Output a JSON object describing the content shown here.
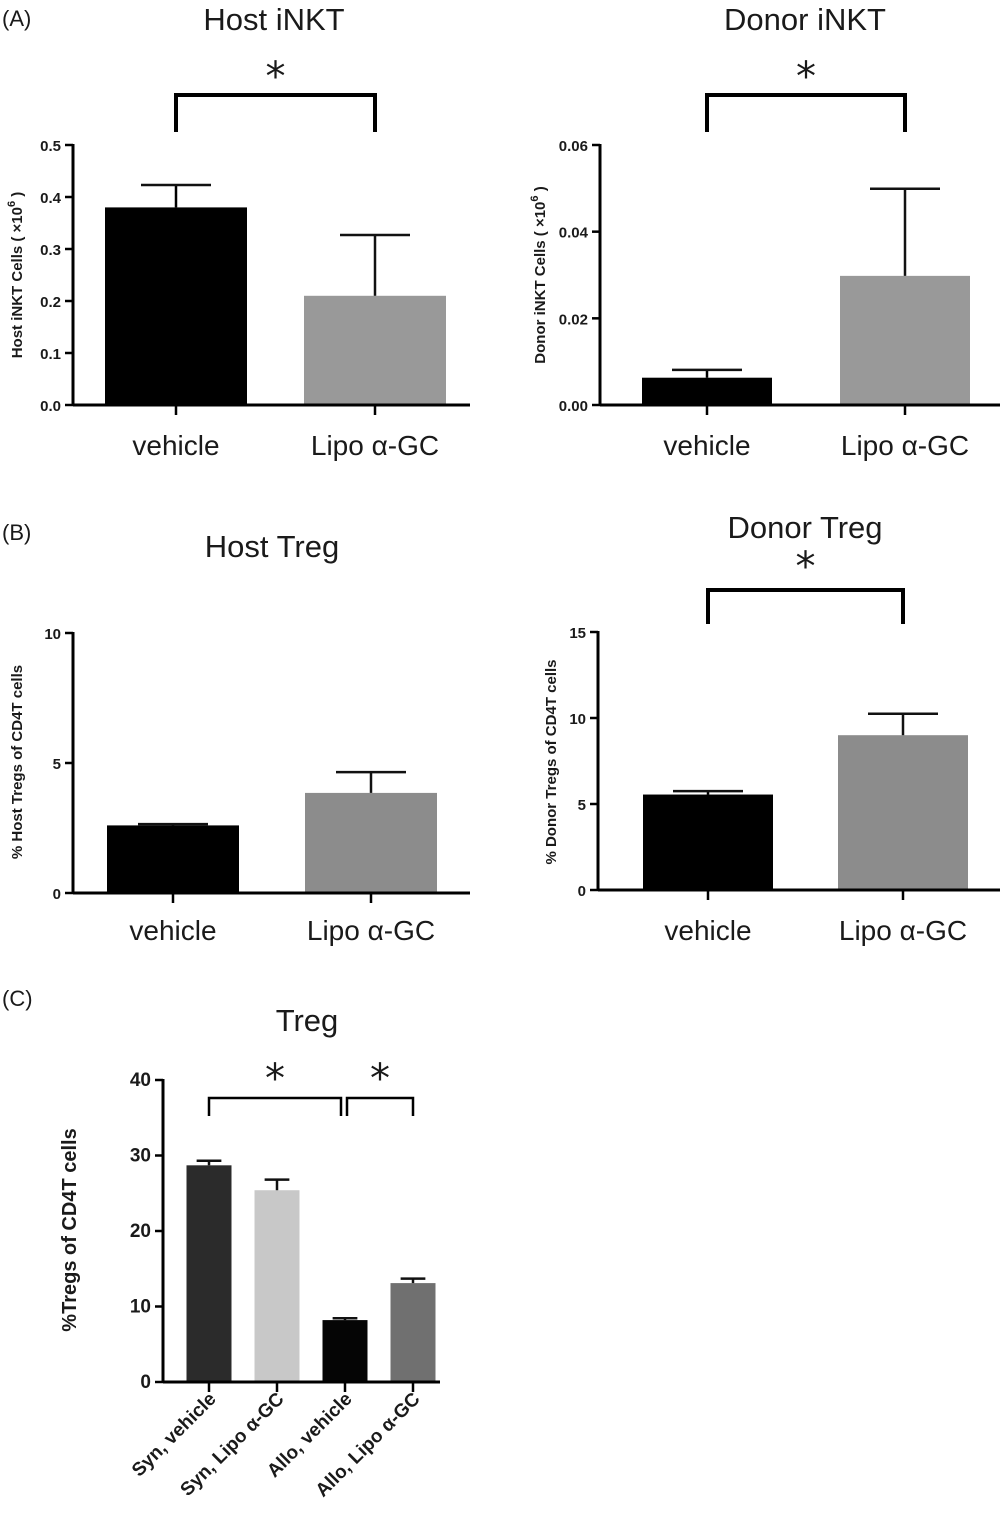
{
  "panels": {
    "A": "(A)",
    "B": "(B)",
    "C": "(C)"
  },
  "chart_data": [
    {
      "id": "hostINKT",
      "type": "bar",
      "panel": "A",
      "title": "Host iNKT",
      "ylabel_main": "Host iNKT Cells (",
      "ylabel_x": "×10",
      "ylabel_exp": "6",
      "ylabel_end": ")",
      "categories": [
        "vehicle",
        "Lipo α-GC"
      ],
      "values": [
        0.38,
        0.21
      ],
      "errors": [
        0.043,
        0.117
      ],
      "colors": [
        "#000000",
        "#999999"
      ],
      "ylim": [
        0,
        0.5
      ],
      "ticks": [
        0.0,
        0.1,
        0.2,
        0.3,
        0.4,
        0.5
      ],
      "tick_labels": [
        "0.0",
        "0.1",
        "0.2",
        "0.3",
        "0.4",
        "0.5"
      ],
      "significance": [
        {
          "from": 0,
          "to": 1,
          "label": "*"
        }
      ]
    },
    {
      "id": "donorINKT",
      "type": "bar",
      "panel": "A",
      "title": "Donor iNKT",
      "ylabel_main": "Donor iNKT Cells (",
      "ylabel_x": "×10",
      "ylabel_exp": "6",
      "ylabel_end": ")",
      "categories": [
        "vehicle",
        "Lipo α-GC"
      ],
      "values": [
        0.0063,
        0.0298
      ],
      "errors": [
        0.0018,
        0.0201
      ],
      "colors": [
        "#000000",
        "#999999"
      ],
      "ylim": [
        0,
        0.06
      ],
      "ticks": [
        0,
        0.02,
        0.04,
        0.06
      ],
      "tick_labels": [
        "0.00",
        "0.02",
        "0.04",
        "0.06"
      ],
      "significance": [
        {
          "from": 0,
          "to": 1,
          "label": "*"
        }
      ]
    },
    {
      "id": "hostTreg",
      "type": "bar",
      "panel": "B",
      "title": "Host Treg",
      "ylabel": "% Host Tregs of CD4T cells",
      "categories": [
        "vehicle",
        "Lipo α-GC"
      ],
      "values": [
        2.6,
        3.85
      ],
      "errors": [
        0.05,
        0.8
      ],
      "colors": [
        "#000000",
        "#8c8c8c"
      ],
      "ylim": [
        0,
        10
      ],
      "ticks": [
        0,
        5,
        10
      ],
      "tick_labels": [
        "0",
        "5",
        "10"
      ],
      "significance": []
    },
    {
      "id": "donorTreg",
      "type": "bar",
      "panel": "B",
      "title": "Donor Treg",
      "ylabel": "% Donor Tregs of CD4T cells",
      "categories": [
        "vehicle",
        "Lipo α-GC"
      ],
      "values": [
        5.55,
        9.0
      ],
      "errors": [
        0.2,
        1.25
      ],
      "colors": [
        "#000000",
        "#8c8c8c"
      ],
      "ylim": [
        0,
        15
      ],
      "ticks": [
        0,
        5,
        10,
        15
      ],
      "tick_labels": [
        "0",
        "5",
        "10",
        "15"
      ],
      "significance": [
        {
          "from": 0,
          "to": 1,
          "label": "*"
        }
      ]
    },
    {
      "id": "treg",
      "type": "bar",
      "panel": "C",
      "title": "Treg",
      "ylabel": "%Tregs of CD4T cells",
      "categories": [
        "Syn, vehicle",
        "Syn, Lipo α-GC",
        "Allo, vehicle",
        "Allo, Lipo α-GC"
      ],
      "values": [
        28.7,
        25.4,
        8.2,
        13.1
      ],
      "errors": [
        0.6,
        1.4,
        0.25,
        0.6
      ],
      "colors": [
        "#2b2b2b",
        "#c8c8c8",
        "#050505",
        "#707070"
      ],
      "ylim": [
        0,
        40
      ],
      "ticks": [
        0,
        10,
        20,
        30,
        40
      ],
      "tick_labels": [
        "0",
        "10",
        "20",
        "30",
        "40"
      ],
      "significance": [
        {
          "from": 0,
          "to": 2,
          "label": "*"
        },
        {
          "from": 2,
          "to": 3,
          "label": "*"
        }
      ]
    }
  ]
}
